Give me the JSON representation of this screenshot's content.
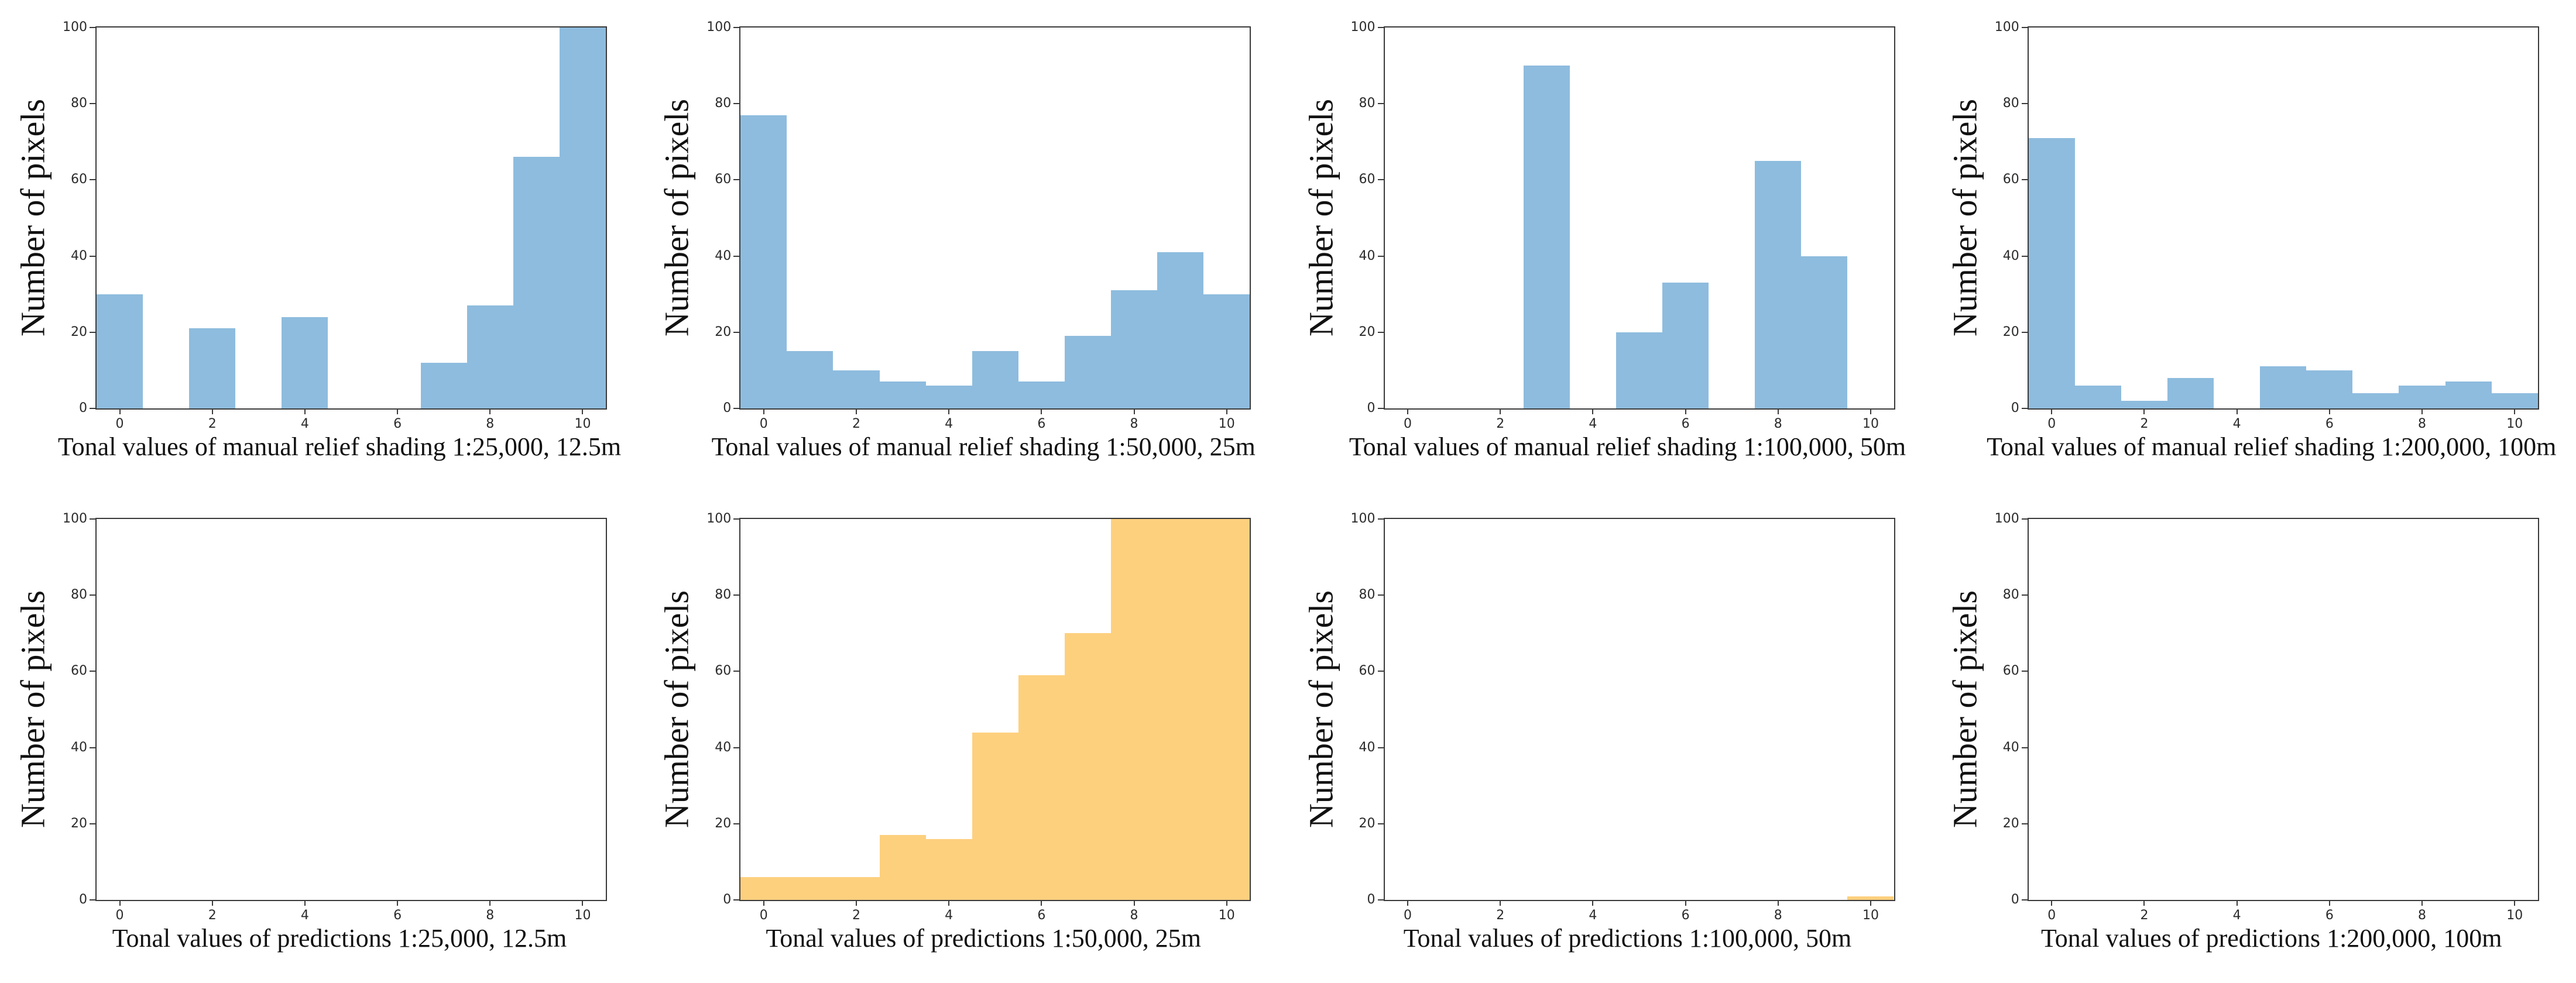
{
  "figure": {
    "background": "#ffffff",
    "rows": 2,
    "cols": 4,
    "axis_color": "#3a3a3a",
    "text_color": "#111111"
  },
  "chart_data": [
    {
      "type": "bar",
      "panel": "manual-relief-shading-1-25000",
      "ylabel": "Number of pixels",
      "xlabel": "Tonal values of manual relief shading 1:25,000, 12.5m",
      "bar_color": "#8ebcde",
      "bin_width": 1,
      "categories": [
        0,
        1,
        2,
        3,
        4,
        5,
        6,
        7,
        8,
        9,
        10
      ],
      "values": [
        30,
        0,
        21,
        0,
        24,
        0,
        0,
        12,
        27,
        66,
        100
      ],
      "xlim": [
        -0.5,
        10.5
      ],
      "ylim": [
        0,
        100
      ],
      "xticks": [
        0,
        2,
        4,
        6,
        8,
        10
      ],
      "yticks": [
        0,
        20,
        40,
        60,
        80,
        100
      ],
      "grid": false,
      "legend": null
    },
    {
      "type": "bar",
      "panel": "manual-relief-shading-1-50000",
      "ylabel": "Number of pixels",
      "xlabel": "Tonal values of manual relief shading 1:50,000, 25m",
      "bar_color": "#8ebcde",
      "bin_width": 1,
      "categories": [
        0,
        1,
        2,
        3,
        4,
        5,
        6,
        7,
        8,
        9,
        10
      ],
      "values": [
        77,
        15,
        10,
        7,
        6,
        15,
        7,
        19,
        31,
        41,
        30
      ],
      "xlim": [
        -0.5,
        10.5
      ],
      "ylim": [
        0,
        100
      ],
      "xticks": [
        0,
        2,
        4,
        6,
        8,
        10
      ],
      "yticks": [
        0,
        20,
        40,
        60,
        80,
        100
      ],
      "grid": false,
      "legend": null
    },
    {
      "type": "bar",
      "panel": "manual-relief-shading-1-100000",
      "ylabel": "Number of pixels",
      "xlabel": "Tonal values of manual relief shading 1:100,000, 50m",
      "bar_color": "#8ebcde",
      "bin_width": 1,
      "categories": [
        0,
        1,
        2,
        3,
        4,
        5,
        6,
        7,
        8,
        9,
        10
      ],
      "values": [
        0,
        0,
        0,
        90,
        0,
        20,
        33,
        0,
        65,
        40,
        0
      ],
      "xlim": [
        -0.5,
        10.5
      ],
      "ylim": [
        0,
        100
      ],
      "xticks": [
        0,
        2,
        4,
        6,
        8,
        10
      ],
      "yticks": [
        0,
        20,
        40,
        60,
        80,
        100
      ],
      "grid": false,
      "legend": null
    },
    {
      "type": "bar",
      "panel": "manual-relief-shading-1-200000",
      "ylabel": "Number of pixels",
      "xlabel": "Tonal values of manual relief shading 1:200,000, 100m",
      "bar_color": "#8ebcde",
      "bin_width": 1,
      "categories": [
        0,
        1,
        2,
        3,
        4,
        5,
        6,
        7,
        8,
        9,
        10
      ],
      "values": [
        71,
        6,
        2,
        8,
        0,
        11,
        10,
        4,
        6,
        7,
        4
      ],
      "xlim": [
        -0.5,
        10.5
      ],
      "ylim": [
        0,
        100
      ],
      "xticks": [
        0,
        2,
        4,
        6,
        8,
        10
      ],
      "yticks": [
        0,
        20,
        40,
        60,
        80,
        100
      ],
      "grid": false,
      "legend": null
    },
    {
      "type": "bar",
      "panel": "predictions-1-25000",
      "ylabel": "Number of pixels",
      "xlabel": "Tonal values of predictions 1:25,000, 12.5m",
      "bar_color": "#fdd07e",
      "bin_width": 1,
      "categories": [
        0,
        1,
        2,
        3,
        4,
        5,
        6,
        7,
        8,
        9,
        10
      ],
      "values": [
        0,
        0,
        0,
        0,
        0,
        0,
        0,
        0,
        0,
        0,
        0
      ],
      "xlim": [
        -0.5,
        10.5
      ],
      "ylim": [
        0,
        100
      ],
      "xticks": [
        0,
        2,
        4,
        6,
        8,
        10
      ],
      "yticks": [
        0,
        20,
        40,
        60,
        80,
        100
      ],
      "grid": false,
      "legend": null
    },
    {
      "type": "bar",
      "panel": "predictions-1-50000",
      "ylabel": "Number of pixels",
      "xlabel": "Tonal values of predictions 1:50,000, 25m",
      "bar_color": "#fdd07e",
      "bin_width": 1,
      "categories": [
        0,
        1,
        2,
        3,
        4,
        5,
        6,
        7,
        8,
        9,
        10
      ],
      "values": [
        6,
        6,
        6,
        17,
        16,
        44,
        59,
        70,
        100,
        100,
        100
      ],
      "xlim": [
        -0.5,
        10.5
      ],
      "ylim": [
        0,
        100
      ],
      "xticks": [
        0,
        2,
        4,
        6,
        8,
        10
      ],
      "yticks": [
        0,
        20,
        40,
        60,
        80,
        100
      ],
      "grid": false,
      "legend": null
    },
    {
      "type": "bar",
      "panel": "predictions-1-100000",
      "ylabel": "Number of pixels",
      "xlabel": "Tonal values of predictions 1:100,000, 50m",
      "bar_color": "#fdd07e",
      "bin_width": 1,
      "categories": [
        0,
        1,
        2,
        3,
        4,
        5,
        6,
        7,
        8,
        9,
        10
      ],
      "values": [
        0,
        0,
        0,
        0,
        0,
        0,
        0,
        0,
        0,
        0,
        1
      ],
      "xlim": [
        -0.5,
        10.5
      ],
      "ylim": [
        0,
        100
      ],
      "xticks": [
        0,
        2,
        4,
        6,
        8,
        10
      ],
      "yticks": [
        0,
        20,
        40,
        60,
        80,
        100
      ],
      "grid": false,
      "legend": null
    },
    {
      "type": "bar",
      "panel": "predictions-1-200000",
      "ylabel": "Number of pixels",
      "xlabel": "Tonal values of predictions 1:200,000, 100m",
      "bar_color": "#fdd07e",
      "bin_width": 1,
      "categories": [
        0,
        1,
        2,
        3,
        4,
        5,
        6,
        7,
        8,
        9,
        10
      ],
      "values": [
        0,
        0,
        0,
        0,
        0,
        0,
        0,
        0,
        0,
        0,
        0
      ],
      "xlim": [
        -0.5,
        10.5
      ],
      "ylim": [
        0,
        100
      ],
      "xticks": [
        0,
        2,
        4,
        6,
        8,
        10
      ],
      "yticks": [
        0,
        20,
        40,
        60,
        80,
        100
      ],
      "grid": false,
      "legend": null
    }
  ]
}
